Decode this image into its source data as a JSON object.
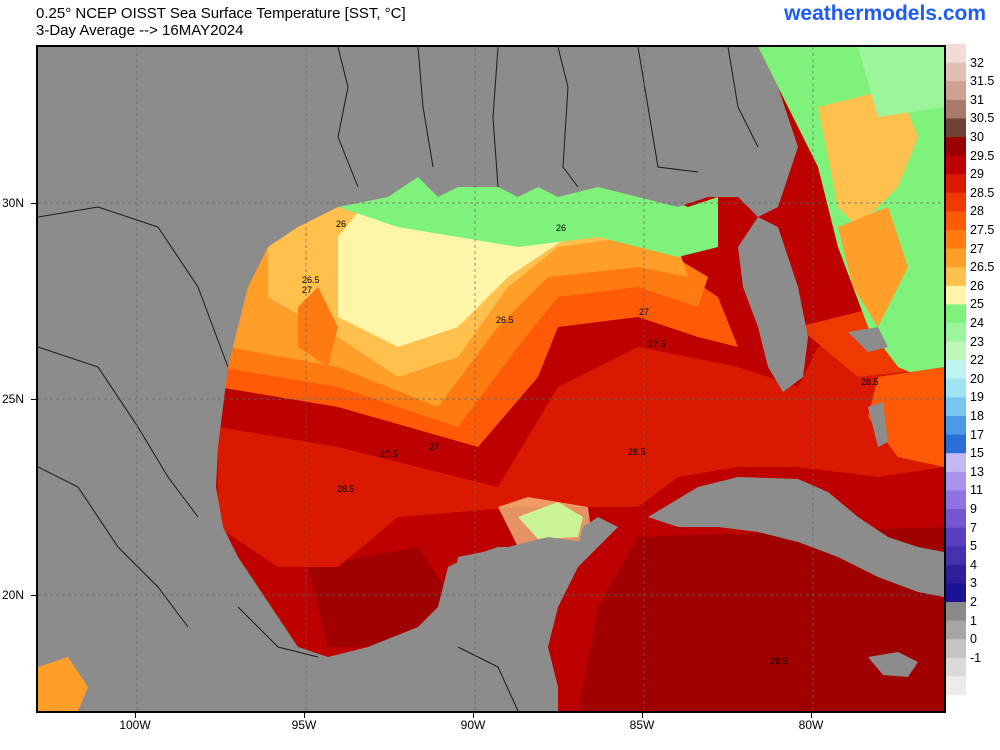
{
  "title_line1": "0.25° NCEP OISST Sea Surface Temperature [SST, °C]",
  "title_line2": "3-Day Average --> 16MAY2024",
  "brand": "weathermodels.com",
  "axes": {
    "lon_ticks": [
      "100W",
      "95W",
      "90W",
      "85W",
      "80W"
    ],
    "lat_ticks": [
      "30N",
      "25N",
      "20N"
    ]
  },
  "colorbar": {
    "labels": [
      "32",
      "31.5",
      "31",
      "30.5",
      "30",
      "29.5",
      "29",
      "28.5",
      "28",
      "27.5",
      "27",
      "26.5",
      "26",
      "25",
      "24",
      "23",
      "22",
      "20",
      "19",
      "18",
      "17",
      "15",
      "13",
      "11",
      "9",
      "7",
      "5",
      "4",
      "3",
      "2",
      "1",
      "0",
      "-1"
    ],
    "colors": [
      "#f1ddd6",
      "#e0c0b3",
      "#cfa293",
      "#a97a6a",
      "#6e4234",
      "#9b0000",
      "#bd0000",
      "#d91a00",
      "#ee3a00",
      "#ff5a08",
      "#ff7a10",
      "#ff9f2a",
      "#ffc04d",
      "#fff5a8",
      "#7ef27a",
      "#9cf59a",
      "#bff7b8",
      "#bff2f3",
      "#a0e4f4",
      "#78c6f0",
      "#4a9ae6",
      "#2a6fd8",
      "#c4b8f2",
      "#a893ee",
      "#8f72e4",
      "#7455d2",
      "#5a3ec0",
      "#4530ad",
      "#2d1f9a",
      "#1c1296",
      "#8a8a8a",
      "#a6a6a6",
      "#c4c4c4",
      "#dadada",
      "#ececec"
    ]
  },
  "contour_labels": [
    "26",
    "26",
    "26.5",
    "27",
    "26.5",
    "27",
    "27.5",
    "28.5",
    "27.5",
    "27",
    "28.5",
    "28.5",
    "29.5"
  ],
  "colors": {
    "land": "#8c8c8c",
    "border": "#1a1a1a",
    "brand": "#1e5cf5"
  }
}
